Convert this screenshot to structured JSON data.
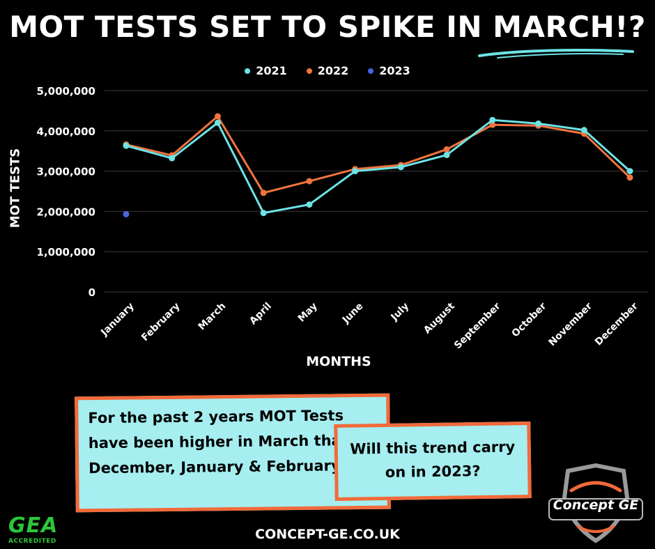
{
  "header": {
    "title": "MOT TESTS SET TO SPIKE IN MARCH!?"
  },
  "chart_data": {
    "type": "line",
    "title": "",
    "xlabel": "MONTHS",
    "ylabel": "MOT TESTS",
    "ylim": [
      0,
      5000000
    ],
    "yticks": [
      0,
      1000000,
      2000000,
      3000000,
      4000000,
      5000000
    ],
    "ytick_labels": [
      "0",
      "1,000,000",
      "2,000,000",
      "3,000,000",
      "4,000,000",
      "5,000,000"
    ],
    "grid": true,
    "legend": "top",
    "categories": [
      "January",
      "February",
      "March",
      "April",
      "May",
      "June",
      "July",
      "August",
      "September",
      "October",
      "November",
      "December"
    ],
    "series": [
      {
        "name": "2021",
        "color": "#6de3e6",
        "values": [
          3630000,
          3320000,
          4200000,
          1960000,
          2170000,
          3000000,
          3100000,
          3400000,
          4270000,
          4180000,
          4020000,
          3000000
        ]
      },
      {
        "name": "2022",
        "color": "#f0743e",
        "values": [
          3660000,
          3390000,
          4360000,
          2460000,
          2750000,
          3050000,
          3150000,
          3540000,
          4150000,
          4130000,
          3930000,
          2840000
        ]
      },
      {
        "name": "2023",
        "color": "#4a63e0",
        "values": [
          1930000,
          null,
          null,
          null,
          null,
          null,
          null,
          null,
          null,
          null,
          null,
          null
        ]
      }
    ]
  },
  "callouts": {
    "box1": "For the past 2 years MOT Tests have been higher in March than December, January & February.",
    "box2": "Will this trend carry on in 2023?"
  },
  "footer": {
    "website": "CONCEPT-GE.CO.UK"
  },
  "logos": {
    "gea_text": "GEA",
    "gea_sub": "ACCREDITED",
    "brand": "Concept GE"
  }
}
